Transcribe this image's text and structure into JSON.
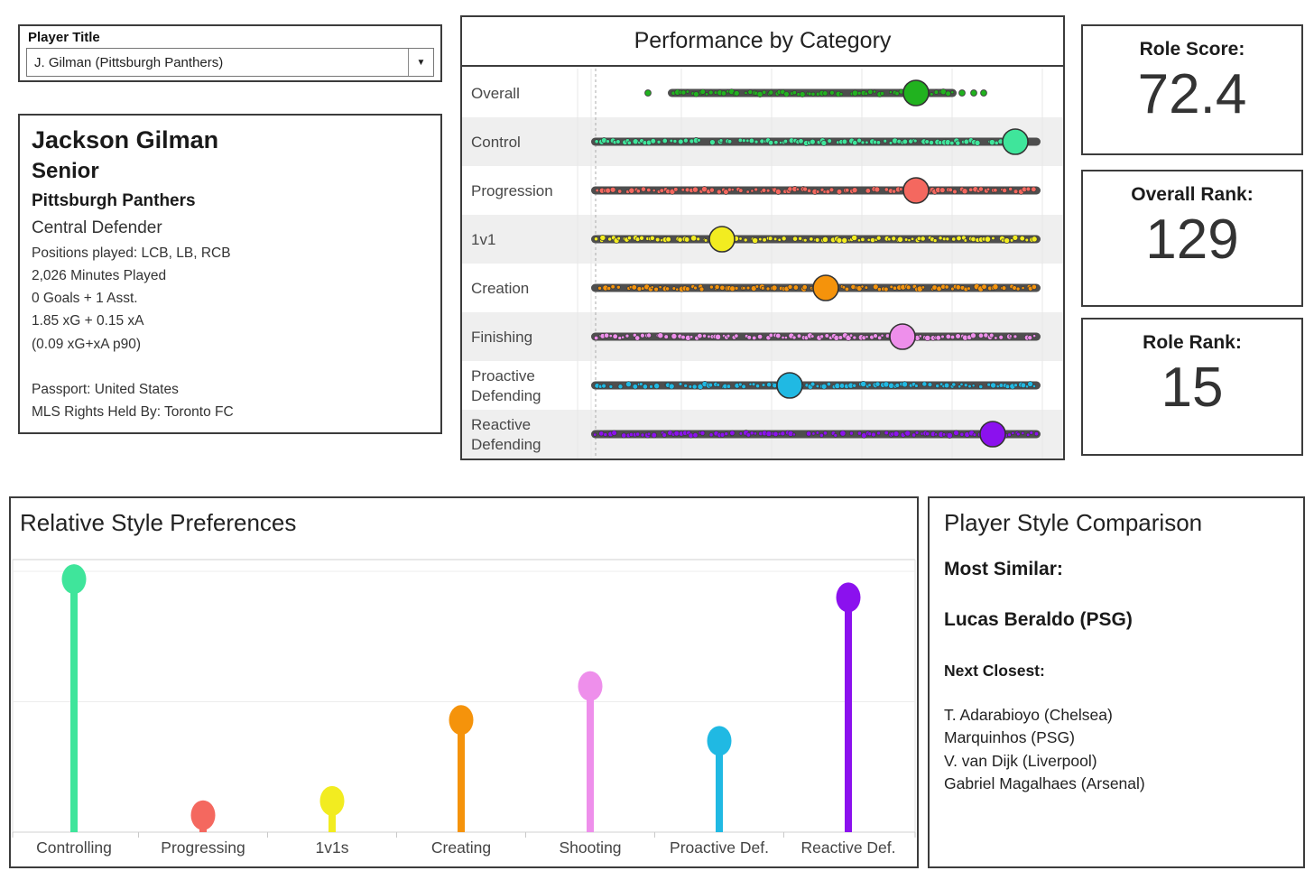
{
  "selector": {
    "label": "Player Title",
    "value": "J. Gilman (Pittsburgh Panthers)",
    "arrow_icon": "▼"
  },
  "player": {
    "name": "Jackson Gilman",
    "year": "Senior",
    "team": "Pittsburgh Panthers",
    "role": "Central Defender",
    "details": [
      "Positions played: LCB, LB, RCB",
      "2,026 Minutes Played",
      "0 Goals + 1 Asst.",
      "1.85 xG + 0.15 xA",
      "(0.09 xG+xA p90)"
    ],
    "extra": [
      "Passport: United States",
      "MLS Rights Held By: Toronto FC"
    ]
  },
  "stat_boxes": [
    {
      "label": "Role Score:",
      "value": "72.4"
    },
    {
      "label": "Overall Rank:",
      "value": "129"
    },
    {
      "label": "Role Rank:",
      "value": "15"
    }
  ],
  "comparison": {
    "title": "Player Style Comparison",
    "most_similar_label": "Most Similar:",
    "most_similar": "Lucas Beraldo (PSG)",
    "next_label": "Next Closest:",
    "next_players": [
      "T. Adarabioyo (Chelsea)",
      "Marquinhos (PSG)",
      "V. van Dijk (Liverpool)",
      "Gabriel Magalhaes (Arsenal)"
    ]
  },
  "chart_data": [
    {
      "type": "strip",
      "title": "Performance by Category",
      "categories": [
        "Overall",
        "Control",
        "Progression",
        "1v1",
        "Creation",
        "Finishing",
        "Proactive Defending",
        "Reactive Defending"
      ],
      "values": [
        72,
        94,
        72,
        29,
        52,
        69,
        44,
        89
      ],
      "axis_range": [
        0,
        100
      ],
      "colors": [
        "#21B21F",
        "#3FE59B",
        "#F4685F",
        "#F2EC20",
        "#F5930B",
        "#EE8FEB",
        "#20B9E3",
        "#8B11EE"
      ],
      "strip_ranges": [
        [
          0.17,
          0.81
        ],
        [
          0,
          0.996
        ],
        [
          0,
          0.996
        ],
        [
          0,
          0.996
        ],
        [
          0,
          0.996
        ],
        [
          0,
          0.996
        ],
        [
          0,
          0.996
        ],
        [
          0,
          0.996
        ]
      ],
      "outlier_dots": [
        [
          0.126,
          0.822,
          0.848,
          0.87
        ],
        [],
        [],
        [],
        [],
        [],
        [],
        []
      ],
      "reference_line": 1,
      "grid": "vertical",
      "band_fill": "#efefef",
      "strip_fill": "#4e4e4e"
    },
    {
      "type": "lollipop",
      "title": "Relative Style Preferences",
      "categories": [
        "Controlling",
        "Progressing",
        "1v1s",
        "Creating",
        "Shooting",
        "Proactive Def.",
        "Reactive Def."
      ],
      "values": [
        0.97,
        0.065,
        0.12,
        0.43,
        0.56,
        0.35,
        0.9
      ],
      "ylim": [
        0,
        1
      ],
      "gridlines": [
        0.5,
        1.0
      ],
      "colors": [
        "#3FE59B",
        "#F4685F",
        "#F2EC20",
        "#F5930B",
        "#EE8FEB",
        "#20B9E3",
        "#8B11EE"
      ],
      "legend": "none"
    }
  ]
}
